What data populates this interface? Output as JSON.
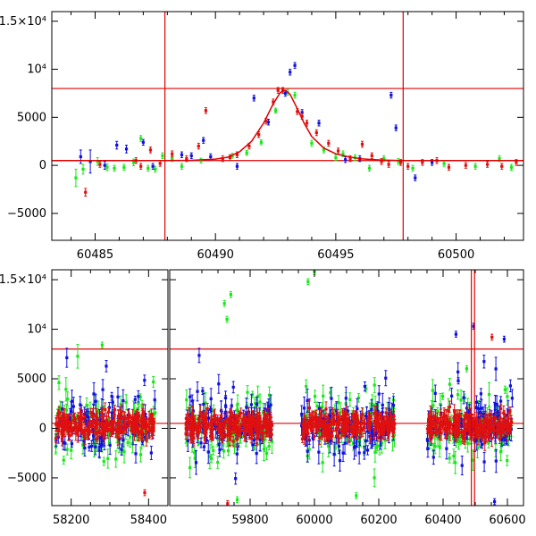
{
  "chart_data": [
    {
      "type": "scatter",
      "panel": "top",
      "xlim": [
        60483.2,
        60502.8
      ],
      "ylim": [
        -7800,
        16000
      ],
      "x_ticks": [
        60485,
        60490,
        60495,
        60500
      ],
      "x_tick_labels": [
        "60485",
        "60490",
        "60495",
        "60500"
      ],
      "y_ticks": [
        -5000,
        0,
        5000,
        10000,
        15000
      ],
      "y_tick_labels": [
        "−5000",
        "0",
        "5000",
        "10⁴",
        "1.5×10⁴"
      ],
      "hlines": [
        8000,
        500
      ],
      "vlines": [
        60487.9,
        60497.8
      ],
      "colors": {
        "frame": "#000000",
        "ref_lines": "#e00000",
        "model": "#e00000",
        "green": "#18e818",
        "blue": "#1010e0",
        "red": "#e01010"
      },
      "model_curve": {
        "x": [
          60483.2,
          60488,
          60489,
          60490,
          60490.5,
          60491,
          60491.5,
          60492,
          60492.4,
          60492.7,
          60492.9,
          60493.1,
          60493.4,
          60493.7,
          60494,
          60494.5,
          60495,
          60495.5,
          60496,
          60496.5,
          60497,
          60497.8,
          60500,
          60502.8
        ],
        "y": [
          500,
          500,
          520,
          650,
          850,
          1400,
          2500,
          4400,
          6400,
          7600,
          7800,
          7400,
          5900,
          4300,
          3000,
          1800,
          1200,
          900,
          700,
          600,
          550,
          500,
          500,
          500
        ]
      },
      "series": [
        {
          "color": "green",
          "points": [
            [
              60484.2,
              -1300,
              900
            ],
            [
              60484.5,
              -400,
              500
            ],
            [
              60485.1,
              400,
              400
            ],
            [
              60485.5,
              -200,
              350
            ],
            [
              60485.8,
              -300,
              300
            ],
            [
              60486.2,
              -200,
              300
            ],
            [
              60486.6,
              300,
              350
            ],
            [
              60486.9,
              2800,
              300
            ],
            [
              60487.2,
              -300,
              300
            ],
            [
              60487.5,
              -400,
              300
            ],
            [
              60487.8,
              1000,
              300
            ],
            [
              60488.2,
              700,
              300
            ],
            [
              60488.6,
              -100,
              300
            ],
            [
              60489.4,
              500,
              250
            ],
            [
              60490.7,
              1000,
              250
            ],
            [
              60491.3,
              1300,
              250
            ],
            [
              60491.9,
              2400,
              250
            ],
            [
              60492.5,
              5700,
              250
            ],
            [
              60493.0,
              7600,
              300
            ],
            [
              60493.3,
              7300,
              300
            ],
            [
              60494.0,
              2300,
              300
            ],
            [
              60494.5,
              1600,
              300
            ],
            [
              60495.0,
              800,
              300
            ],
            [
              60495.3,
              1200,
              300
            ],
            [
              60495.8,
              800,
              300
            ],
            [
              60496.4,
              -300,
              300
            ],
            [
              60497.0,
              700,
              300
            ],
            [
              60497.6,
              400,
              300
            ],
            [
              60498.2,
              -300,
              300
            ],
            [
              60499.5,
              200,
              300
            ],
            [
              60500.8,
              -100,
              300
            ],
            [
              60501.8,
              700,
              300
            ],
            [
              60502.3,
              -200,
              300
            ]
          ]
        },
        {
          "color": "blue",
          "points": [
            [
              60484.4,
              900,
              700
            ],
            [
              60484.8,
              400,
              1200
            ],
            [
              60485.4,
              0,
              400
            ],
            [
              60485.9,
              2100,
              400
            ],
            [
              60486.3,
              1700,
              400
            ],
            [
              60487.0,
              2400,
              300
            ],
            [
              60487.4,
              -100,
              300
            ],
            [
              60488.6,
              1100,
              300
            ],
            [
              60489.0,
              1000,
              300
            ],
            [
              60489.5,
              2600,
              300
            ],
            [
              60489.8,
              900,
              300
            ],
            [
              60490.9,
              -100,
              300
            ],
            [
              60491.6,
              7000,
              300
            ],
            [
              60492.2,
              4500,
              300
            ],
            [
              60492.9,
              7500,
              300
            ],
            [
              60493.1,
              9700,
              300
            ],
            [
              60493.3,
              10400,
              300
            ],
            [
              60493.6,
              5500,
              300
            ],
            [
              60494.3,
              4400,
              300
            ],
            [
              60495.4,
              600,
              300
            ],
            [
              60496.0,
              700,
              300
            ],
            [
              60497.3,
              7300,
              300
            ],
            [
              60497.5,
              3900,
              300
            ],
            [
              60498.3,
              -1300,
              300
            ],
            [
              60499.0,
              300,
              300
            ]
          ]
        },
        {
          "color": "red",
          "points": [
            [
              60484.6,
              -2800,
              400
            ],
            [
              60485.2,
              100,
              300
            ],
            [
              60486.7,
              500,
              300
            ],
            [
              60486.9,
              -100,
              300
            ],
            [
              60487.3,
              1600,
              300
            ],
            [
              60487.7,
              200,
              300
            ],
            [
              60488.2,
              1200,
              300
            ],
            [
              60488.8,
              700,
              300
            ],
            [
              60489.3,
              2000,
              300
            ],
            [
              60489.6,
              5700,
              300
            ],
            [
              60490.3,
              700,
              300
            ],
            [
              60490.6,
              800,
              300
            ],
            [
              60490.9,
              1100,
              300
            ],
            [
              60491.4,
              2000,
              300
            ],
            [
              60491.8,
              3200,
              300
            ],
            [
              60492.1,
              4600,
              300
            ],
            [
              60492.4,
              6600,
              300
            ],
            [
              60492.6,
              7800,
              300
            ],
            [
              60492.8,
              7800,
              300
            ],
            [
              60493.4,
              5600,
              300
            ],
            [
              60493.6,
              5100,
              300
            ],
            [
              60493.8,
              4400,
              300
            ],
            [
              60494.2,
              3400,
              300
            ],
            [
              60494.7,
              2300,
              300
            ],
            [
              60495.1,
              1500,
              300
            ],
            [
              60495.6,
              700,
              300
            ],
            [
              60496.1,
              2200,
              300
            ],
            [
              60496.5,
              1000,
              300
            ],
            [
              60496.9,
              400,
              300
            ],
            [
              60497.2,
              100,
              300
            ],
            [
              60497.7,
              300,
              300
            ],
            [
              60498.0,
              -100,
              300
            ],
            [
              60498.6,
              300,
              300
            ],
            [
              60499.2,
              500,
              300
            ],
            [
              60499.7,
              -200,
              300
            ],
            [
              60500.4,
              0,
              300
            ],
            [
              60501.3,
              100,
              300
            ],
            [
              60501.9,
              -100,
              300
            ],
            [
              60502.5,
              300,
              300
            ]
          ]
        }
      ]
    },
    {
      "type": "scatter",
      "panel": "bottom",
      "ylim": [
        -7800,
        16000
      ],
      "y_ticks": [
        -5000,
        0,
        5000,
        10000,
        15000
      ],
      "y_tick_labels": [
        "−5000",
        "0",
        "5000",
        "10⁴",
        "1.5×10⁴"
      ],
      "hlines": [
        8000,
        500
      ],
      "x_segments": [
        {
          "range": [
            58150,
            58450
          ],
          "ticks": [
            58200,
            58400
          ],
          "tick_labels": [
            "58200",
            "58400"
          ]
        },
        {
          "range": [
            59550,
            60650
          ],
          "ticks": [
            59800,
            60000,
            60200,
            60400,
            60600
          ],
          "tick_labels": [
            "59800",
            "60000",
            "60200",
            "60400",
            "60600"
          ]
        }
      ],
      "vlines": [
        60487.9,
        60497.8
      ],
      "seasons": [
        [
          58160,
          58420
        ],
        [
          59600,
          59870
        ],
        [
          59960,
          60250
        ],
        [
          60350,
          60615
        ]
      ],
      "season_scatter_sigma": 1200,
      "outliers": [
        {
          "x": 59720,
          "y": 12600,
          "color": "green"
        },
        {
          "x": 59740,
          "y": 13500,
          "color": "green"
        },
        {
          "x": 59728,
          "y": 11000,
          "color": "green"
        },
        {
          "x": 59980,
          "y": 14800,
          "color": "green"
        },
        {
          "x": 60000,
          "y": 15800,
          "color": "green"
        },
        {
          "x": 58280,
          "y": 8400,
          "color": "green"
        },
        {
          "x": 60495,
          "y": 10300,
          "color": "blue"
        },
        {
          "x": 60440,
          "y": 9500,
          "color": "blue"
        },
        {
          "x": 60552,
          "y": 9200,
          "color": "red"
        },
        {
          "x": 60590,
          "y": 9000,
          "color": "blue"
        },
        {
          "x": 58390,
          "y": -6500,
          "color": "red"
        },
        {
          "x": 59730,
          "y": -7600,
          "color": "red"
        },
        {
          "x": 59760,
          "y": -7200,
          "color": "green"
        },
        {
          "x": 60130,
          "y": -6800,
          "color": "green"
        },
        {
          "x": 60560,
          "y": -7400,
          "color": "blue"
        }
      ]
    }
  ]
}
